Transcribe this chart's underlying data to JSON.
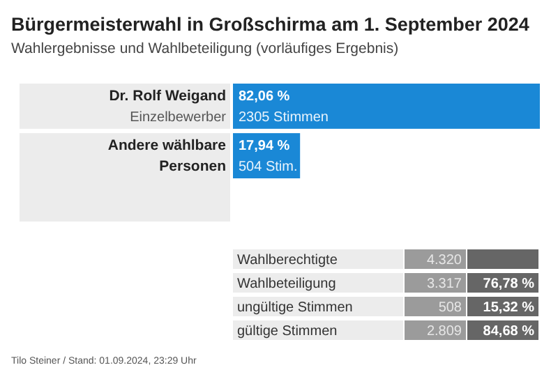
{
  "chart_data": [
    {
      "type": "bar",
      "title": "Bürgermeisterwahl in Großschirma am 1. September 2024",
      "subtitle": "Wahlergebnisse und Wahlbeteiligung (vorläufiges Ergebnis)",
      "orientation": "horizontal",
      "categories": [
        "Dr. Rolf Weigand",
        "Andere wählbare Personen"
      ],
      "values": [
        82.06,
        17.94
      ],
      "color": "#1a88d6",
      "value_labels": [
        "82,06 %",
        "17,94 %"
      ],
      "annotations": [
        "Einzelbewerber",
        "2305 Stimmen",
        "504 Stim.",
        "Tilo Steiner / Stand: 01.09.2024, 23:29 Uhr"
      ]
    },
    {
      "type": "other",
      "categories": [
        "Wahlberechtigte",
        "Wahlbeteiligung",
        "ungültige Stimmen",
        "gültige Stimmen"
      ],
      "series": [
        {
          "color": "#9b9b9b",
          "values": [
            4320,
            3317,
            508,
            2809
          ],
          "value_labels": [
            "4.320",
            "3.317",
            "508",
            "2.809"
          ]
        },
        {
          "color": "#666666",
          "values": [
            null,
            76.78,
            15.32,
            84.68
          ],
          "value_labels": [
            null,
            "76,78 %",
            "15,32 %",
            "84,68 %"
          ]
        }
      ]
    }
  ]
}
